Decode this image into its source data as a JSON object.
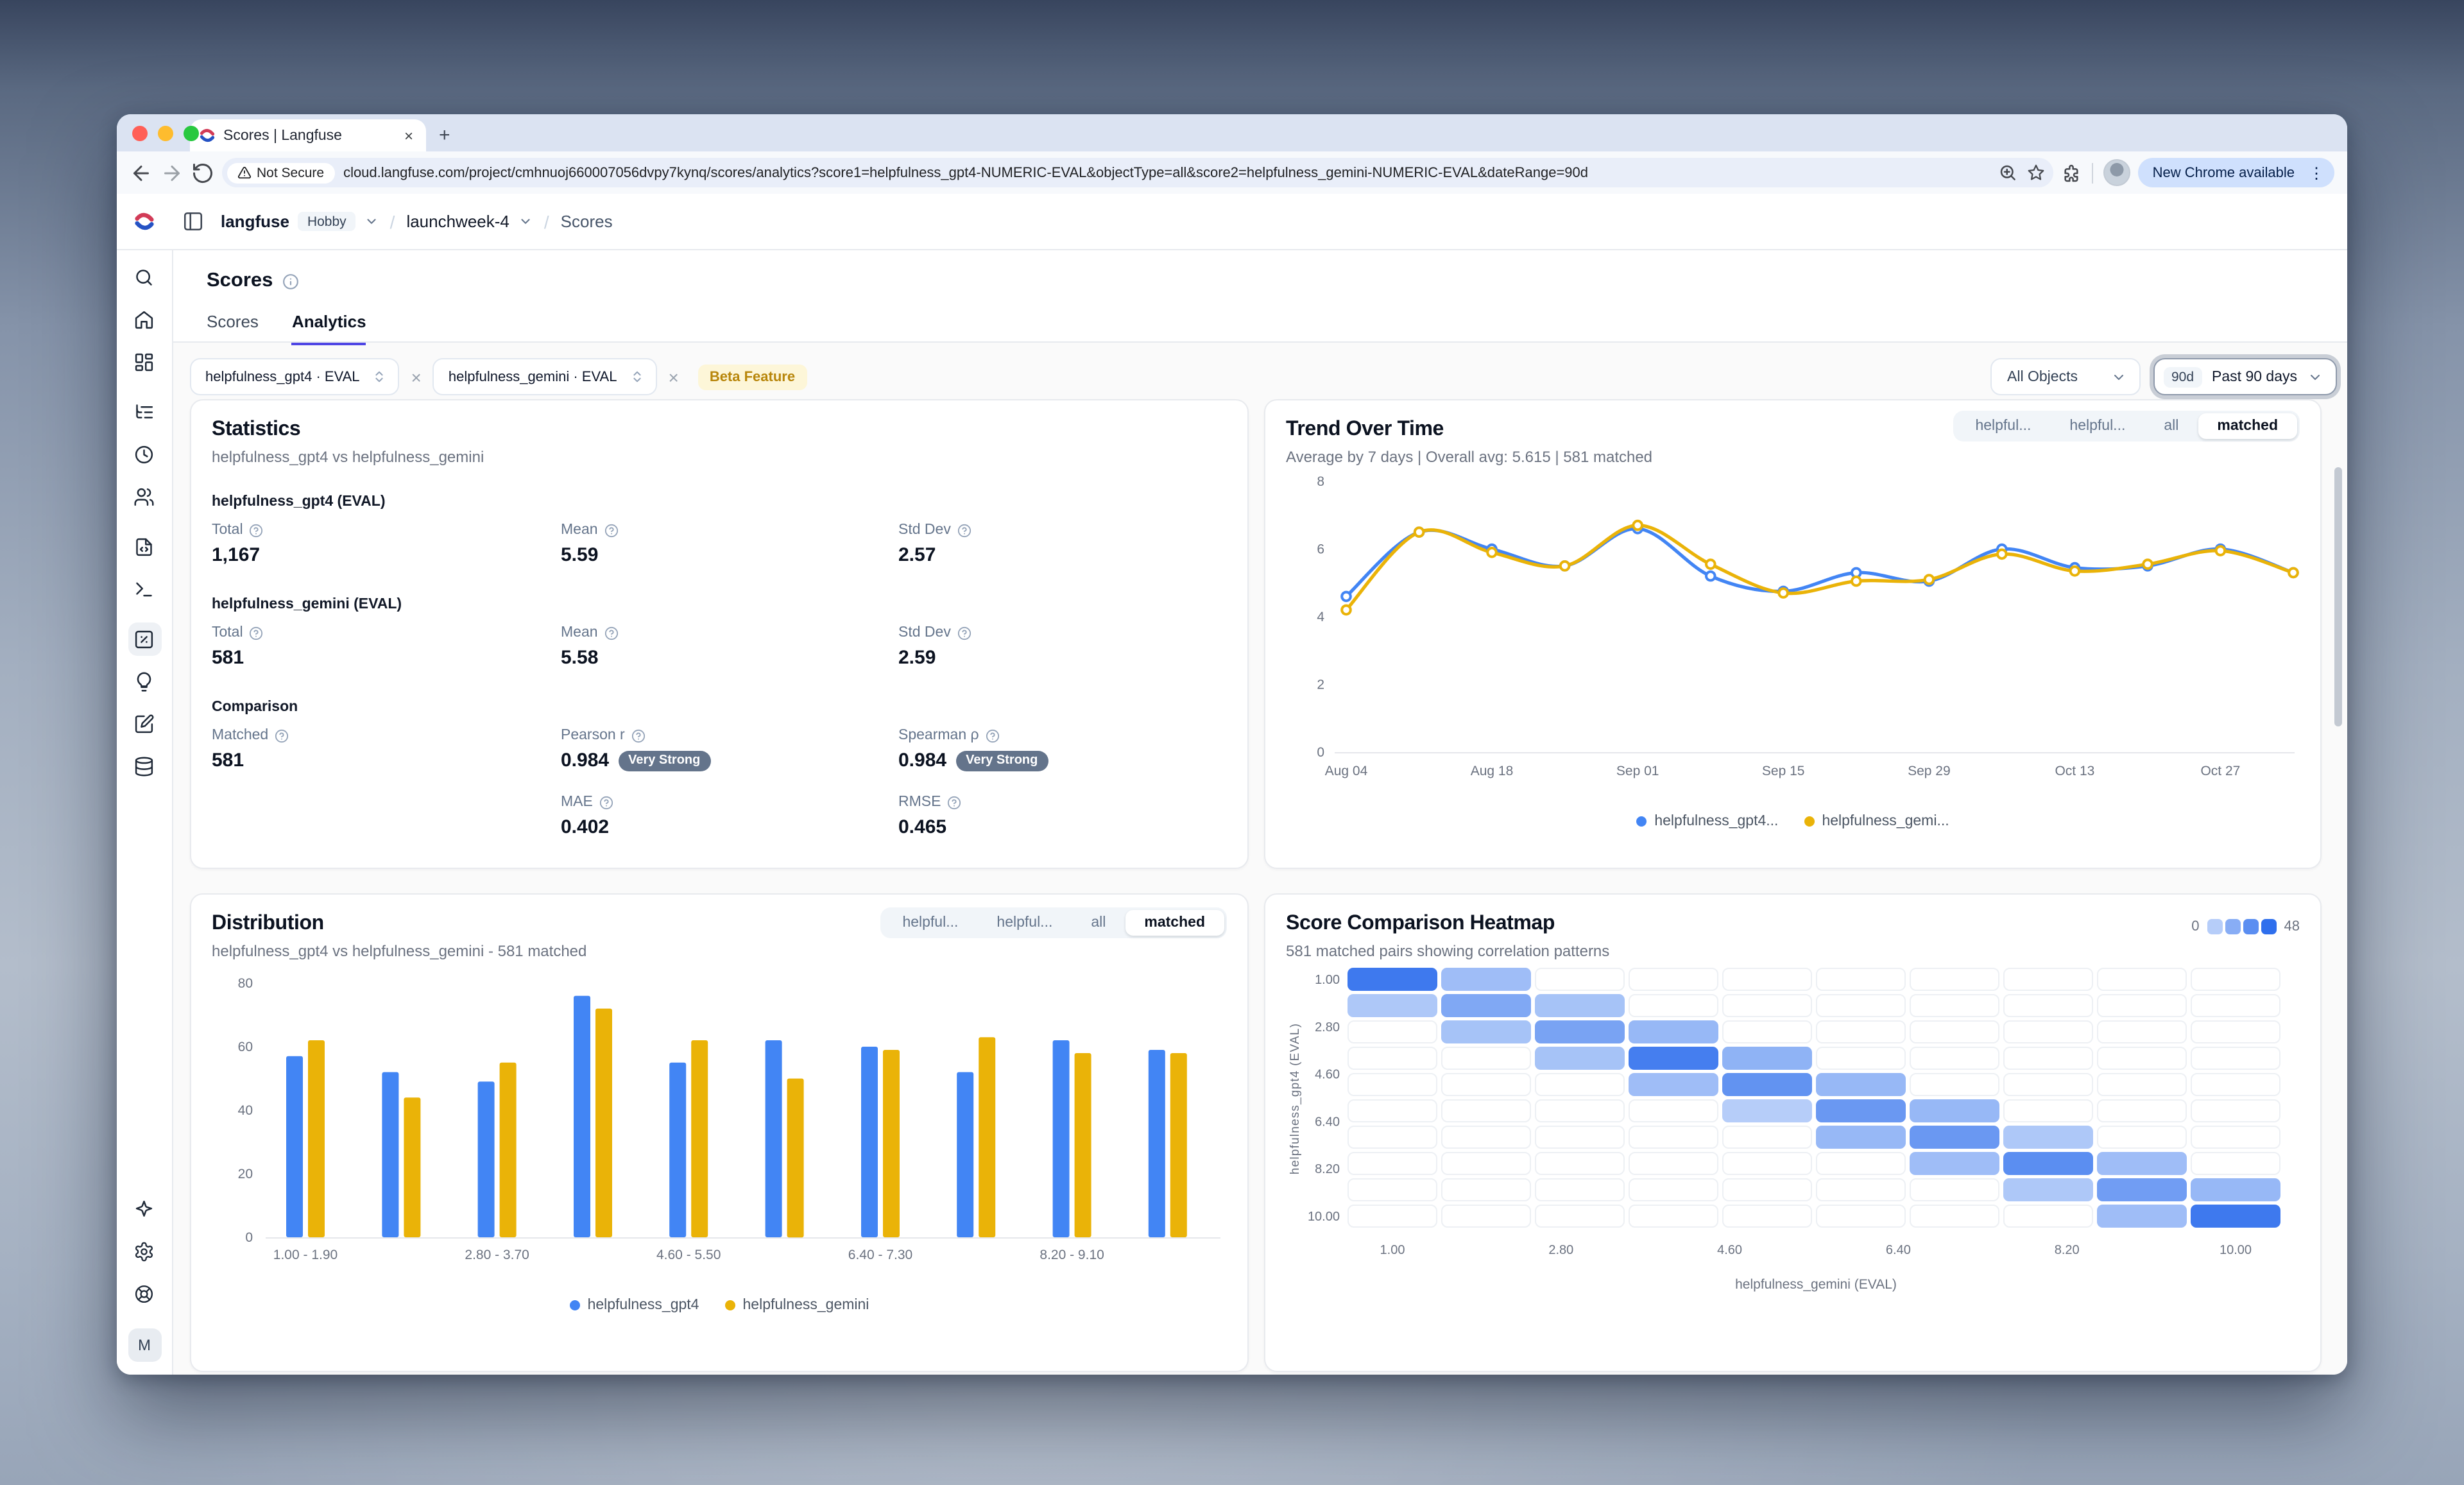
{
  "browser": {
    "tab_title": "Scores | Langfuse",
    "new_tab": "+",
    "close_tab": "×",
    "not_secure_label": "Not Secure",
    "url": "cloud.langfuse.com/project/cmhnuoj660007056dvpy7kynq/scores/analytics?score1=helpfulness_gpt4-NUMERIC-EVAL&objectType=all&score2=helpfulness_gemini-NUMERIC-EVAL&dateRange=90d",
    "update_chip": "New Chrome available",
    "kebab": "⋮"
  },
  "app": {
    "breadcrumb": {
      "org": "langfuse",
      "plan_badge": "Hobby",
      "separator": "/",
      "project": "launchweek-4",
      "page": "Scores"
    },
    "page_title": "Scores",
    "tabs": [
      {
        "label": "Scores",
        "active": false
      },
      {
        "label": "Analytics",
        "active": true
      }
    ],
    "filters": {
      "score1": "helpfulness_gpt4 · EVAL",
      "remove1": "×",
      "score2": "helpfulness_gemini · EVAL",
      "remove2": "×",
      "beta_badge": "Beta Feature",
      "object_select": "All Objects",
      "date_badge": "90d",
      "date_select": "Past 90 days"
    },
    "segmented_controls": [
      "helpful...",
      "helpful...",
      "all",
      "matched"
    ],
    "segmented_selected": "matched",
    "avatar_initial": "M",
    "sidebar_icon_names": [
      "search",
      "home",
      "dashboards",
      "tracing",
      "sessions",
      "users",
      "prompts",
      "playground",
      "scores",
      "evaluators",
      "annotation-queues",
      "datasets",
      "whats-new",
      "settings",
      "support"
    ]
  },
  "statistics": {
    "title": "Statistics",
    "subtitle": "helpfulness_gpt4 vs helpfulness_gemini",
    "sections": [
      {
        "heading": "helpfulness_gpt4 (EVAL)",
        "stats": [
          {
            "label": "Total",
            "value": "1,167"
          },
          {
            "label": "Mean",
            "value": "5.59"
          },
          {
            "label": "Std Dev",
            "value": "2.57"
          }
        ]
      },
      {
        "heading": "helpfulness_gemini (EVAL)",
        "stats": [
          {
            "label": "Total",
            "value": "581"
          },
          {
            "label": "Mean",
            "value": "5.58"
          },
          {
            "label": "Std Dev",
            "value": "2.59"
          }
        ]
      },
      {
        "heading": "Comparison",
        "stats": [
          {
            "label": "Matched",
            "value": "581"
          },
          {
            "label": "Pearson r",
            "value": "0.984",
            "badge": "Very Strong"
          },
          {
            "label": "Spearman ρ",
            "value": "0.984",
            "badge": "Very Strong"
          }
        ],
        "stats2": [
          {
            "label": "MAE",
            "value": "0.402"
          },
          {
            "label": "RMSE",
            "value": "0.465"
          }
        ]
      }
    ]
  },
  "chart_data": [
    {
      "id": "trend",
      "type": "line",
      "title": "Trend Over Time",
      "subtitle": "Average by 7 days | Overall avg: 5.615 | 581 matched",
      "x": [
        "Aug 04",
        "Aug 11",
        "Aug 18",
        "Aug 25",
        "Sep 01",
        "Sep 08",
        "Sep 15",
        "Sep 22",
        "Sep 29",
        "Oct 06",
        "Oct 13",
        "Oct 20",
        "Oct 27",
        "Nov 03"
      ],
      "x_tick_labels": [
        "Aug 04",
        "Aug 18",
        "Sep 01",
        "Sep 15",
        "Sep 29",
        "Oct 13",
        "Oct 27"
      ],
      "ylim": [
        0,
        8
      ],
      "yticks": [
        0,
        2,
        4,
        6,
        8
      ],
      "grid": false,
      "legend_position": "bottom",
      "series": [
        {
          "name": "helpfulness_gpt4",
          "color": "#4285f4",
          "values": [
            4.6,
            6.5,
            6.0,
            5.5,
            6.6,
            5.2,
            4.75,
            5.3,
            5.05,
            6.0,
            5.45,
            5.5,
            6.0,
            5.3
          ]
        },
        {
          "name": "helpfulness_gemini",
          "color": "#eab308",
          "values": [
            4.2,
            6.5,
            5.9,
            5.5,
            6.7,
            5.55,
            4.7,
            5.05,
            5.1,
            5.85,
            5.35,
            5.55,
            5.95,
            5.3
          ]
        }
      ],
      "legend": [
        "helpfulness_gpt4...",
        "helpfulness_gemi..."
      ]
    },
    {
      "id": "distribution",
      "type": "bar",
      "title": "Distribution",
      "subtitle": "helpfulness_gpt4 vs helpfulness_gemini - 581 matched",
      "categories": [
        "1.00 - 1.90",
        "1.90 - 2.80",
        "2.80 - 3.70",
        "3.70 - 4.60",
        "4.60 - 5.50",
        "5.50 - 6.40",
        "6.40 - 7.30",
        "7.30 - 8.20",
        "8.20 - 9.10",
        "9.10 - 10.00"
      ],
      "x_tick_labels": [
        "1.00 - 1.90",
        "2.80 - 3.70",
        "4.60 - 5.50",
        "6.40 - 7.30",
        "8.20 - 9.10"
      ],
      "ylim": [
        0,
        80
      ],
      "yticks": [
        0,
        20,
        40,
        60,
        80
      ],
      "grid": false,
      "legend_position": "bottom",
      "series": [
        {
          "name": "helpfulness_gpt4",
          "color": "#4285f4",
          "values": [
            57,
            52,
            49,
            76,
            55,
            62,
            60,
            52,
            62,
            59
          ]
        },
        {
          "name": "helpfulness_gemini",
          "color": "#eab308",
          "values": [
            62,
            44,
            55,
            72,
            62,
            50,
            59,
            63,
            58,
            58
          ]
        }
      ],
      "legend": [
        "helpfulness_gpt4",
        "helpfulness_gemini"
      ]
    },
    {
      "id": "heatmap",
      "type": "heatmap",
      "title": "Score Comparison Heatmap",
      "subtitle": "581 matched pairs showing correlation patterns",
      "xlabel": "helpfulness_gemini (EVAL)",
      "ylabel": "helpfulness_gpt4 (EVAL)",
      "x_ticks": [
        "1.00",
        "2.80",
        "4.60",
        "6.40",
        "8.20",
        "10.00"
      ],
      "y_ticks": [
        "1.00",
        "2.80",
        "4.60",
        "6.40",
        "8.20",
        "10.00"
      ],
      "scale_min": 0,
      "scale_max": 48,
      "matrix": [
        [
          44,
          18,
          0,
          0,
          0,
          0,
          0,
          0,
          0,
          0
        ],
        [
          14,
          26,
          16,
          0,
          0,
          0,
          0,
          0,
          0,
          0
        ],
        [
          0,
          16,
          28,
          20,
          0,
          0,
          0,
          0,
          0,
          0
        ],
        [
          0,
          0,
          16,
          42,
          22,
          0,
          0,
          0,
          0,
          0
        ],
        [
          0,
          0,
          0,
          18,
          34,
          20,
          0,
          0,
          0,
          0
        ],
        [
          0,
          0,
          0,
          0,
          12,
          32,
          20,
          0,
          0,
          0
        ],
        [
          0,
          0,
          0,
          0,
          0,
          20,
          32,
          14,
          0,
          0
        ],
        [
          0,
          0,
          0,
          0,
          0,
          0,
          18,
          36,
          18,
          0
        ],
        [
          0,
          0,
          0,
          0,
          0,
          0,
          0,
          14,
          30,
          20
        ],
        [
          0,
          0,
          0,
          0,
          0,
          0,
          0,
          0,
          18,
          44
        ]
      ]
    }
  ]
}
